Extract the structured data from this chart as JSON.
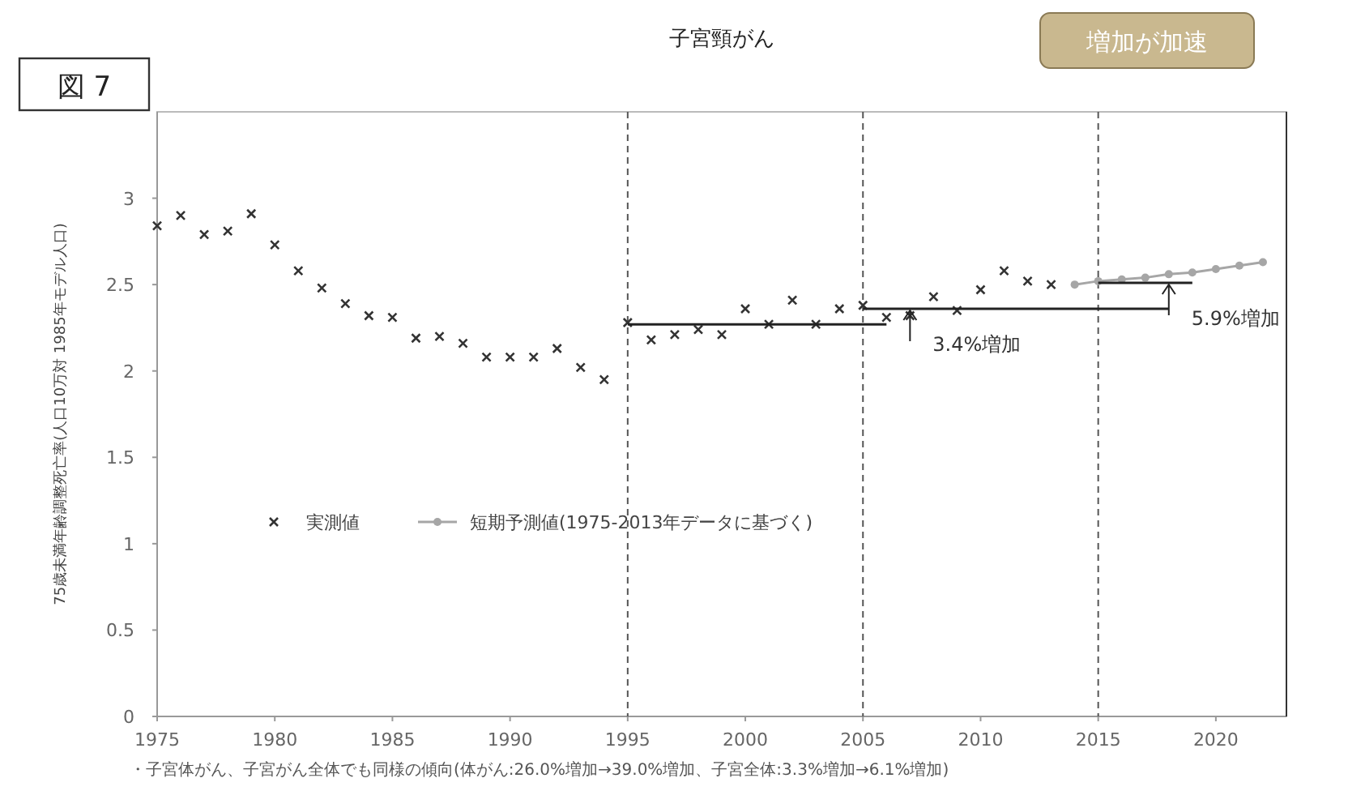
{
  "chart_data": {
    "type": "scatter",
    "title": "子宮頸がん",
    "ylabel": "75歳未満年齢調整死亡率(人口10万対 1985年モデル人口)",
    "xlim": [
      1975,
      2023
    ],
    "xticks": [
      1975,
      1980,
      1985,
      1990,
      1995,
      2000,
      2005,
      2010,
      2015,
      2020
    ],
    "ylim": [
      0,
      3.5
    ],
    "yticks": [
      0,
      0.5,
      1,
      1.5,
      2,
      2.5,
      3
    ],
    "grid": false,
    "legend": "bottom left",
    "series": [
      {
        "name": "実測値",
        "marker": "cross",
        "color": "#333333",
        "x": [
          1975,
          1976,
          1977,
          1978,
          1979,
          1980,
          1981,
          1982,
          1983,
          1984,
          1985,
          1986,
          1987,
          1988,
          1989,
          1990,
          1991,
          1992,
          1993,
          1994,
          1995,
          1996,
          1997,
          1998,
          1999,
          2000,
          2001,
          2002,
          2003,
          2004,
          2005,
          2006,
          2007,
          2008,
          2009,
          2010,
          2011,
          2012,
          2013
        ],
        "values": [
          2.84,
          2.9,
          2.79,
          2.81,
          2.91,
          2.73,
          2.58,
          2.48,
          2.39,
          2.32,
          2.31,
          2.19,
          2.2,
          2.16,
          2.08,
          2.08,
          2.08,
          2.13,
          2.02,
          1.95,
          2.28,
          2.18,
          2.21,
          2.24,
          2.21,
          2.36,
          2.27,
          2.41,
          2.27,
          2.36,
          2.38,
          2.31,
          2.32,
          2.43,
          2.35,
          2.47,
          2.58,
          2.52,
          2.5
        ]
      },
      {
        "name": "短期予測値(1975-2013年データに基づく)",
        "type": "line",
        "marker": "circle",
        "color": "#a6a6a6",
        "x": [
          2014,
          2015,
          2016,
          2017,
          2018,
          2019,
          2020,
          2021,
          2022
        ],
        "values": [
          2.5,
          2.52,
          2.53,
          2.54,
          2.56,
          2.57,
          2.59,
          2.61,
          2.63
        ]
      },
      {
        "type": "line",
        "marker": "none",
        "color": "#222222",
        "x": [
          1995,
          2006
        ],
        "values": [
          2.27,
          2.27
        ]
      },
      {
        "type": "line",
        "marker": "none",
        "color": "#222222",
        "x": [
          2005,
          2018
        ],
        "values": [
          2.36,
          2.36
        ]
      },
      {
        "type": "line",
        "marker": "none",
        "color": "#222222",
        "x": [
          2015,
          2019
        ],
        "values": [
          2.51,
          2.51
        ]
      }
    ],
    "ref_lines": [
      {
        "axis": "x",
        "value": 1995,
        "line_style": "dashed",
        "color": "#555555"
      },
      {
        "axis": "x",
        "value": 2005,
        "line_style": "dashed",
        "color": "#555555"
      },
      {
        "axis": "x",
        "value": 2015,
        "line_style": "dashed",
        "color": "#555555"
      }
    ],
    "annotations": [
      {
        "text": "3.4%増加",
        "x": 2007,
        "y": 2.36
      },
      {
        "text": "5.9%増加",
        "x": 2018,
        "y": 2.51
      },
      "図 7",
      "増加が加速",
      "・子宮体がん、子宮がん全体でも同様の傾向(体がん:26.0%増加→39.0%増加、子宮全体:3.3%増加→6.1%増加)"
    ]
  }
}
